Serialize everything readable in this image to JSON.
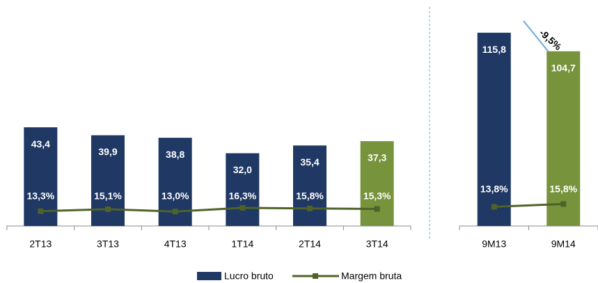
{
  "chart_data": [
    {
      "type": "bar",
      "categories": [
        "2T13",
        "3T13",
        "4T13",
        "1T14",
        "2T14",
        "3T14"
      ],
      "series": [
        {
          "name": "Lucro bruto",
          "type": "bar",
          "color": "#1f3864",
          "colors": [
            "#1f3864",
            "#1f3864",
            "#1f3864",
            "#1f3864",
            "#1f3864",
            "#77933c"
          ],
          "values": [
            43.4,
            39.9,
            38.8,
            32.0,
            35.4,
            37.3
          ],
          "value_labels": [
            "43,4",
            "39,9",
            "38,8",
            "32,0",
            "35,4",
            "37,3"
          ]
        },
        {
          "name": "Margem bruta",
          "type": "line",
          "axis": "y2",
          "color": "#4f6228",
          "values": [
            13.3,
            15.1,
            13.0,
            16.3,
            15.8,
            15.3
          ],
          "value_labels": [
            "13,3%",
            "15,1%",
            "13,0%",
            "16,3%",
            "15,8%",
            "15,3%"
          ]
        }
      ]
    },
    {
      "type": "bar",
      "categories": [
        "9M13",
        "9M14"
      ],
      "annotation": "-9,5%",
      "series": [
        {
          "name": "Lucro bruto",
          "type": "bar",
          "color": "#1f3864",
          "colors": [
            "#1f3864",
            "#77933c"
          ],
          "values": [
            115.8,
            104.7
          ],
          "value_labels": [
            "115,8",
            "104,7"
          ]
        },
        {
          "name": "Margem bruta",
          "type": "line",
          "axis": "y2",
          "color": "#4f6228",
          "values": [
            13.8,
            15.8
          ],
          "value_labels": [
            "13,8%",
            "15,8%"
          ]
        }
      ]
    }
  ]
}
